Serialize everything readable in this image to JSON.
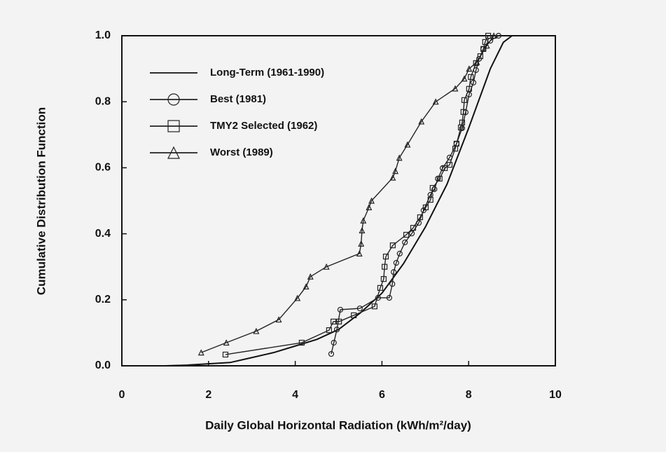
{
  "chart_data": {
    "type": "line",
    "x_label": "Daily Global Horizontal Radiation (kWh/m²/day)",
    "y_label": "Cumulative Distribution Function",
    "xlim": [
      0,
      10
    ],
    "ylim": [
      0,
      1
    ],
    "xticks": [
      0,
      2,
      4,
      6,
      8,
      10
    ],
    "yticks": [
      {
        "value": 0,
        "label": "0.0"
      },
      0.2,
      0.4,
      0.6,
      0.8,
      {
        "value": 1,
        "label": "1.0"
      }
    ],
    "legend": "upper-left",
    "series": [
      {
        "name": "Long-Term (1961-1990)",
        "color": "#111111",
        "marker": "none",
        "x": [
          1.0,
          1.5,
          2.5,
          3.0,
          3.5,
          4.0,
          4.5,
          5.0,
          5.5,
          6.0,
          6.5,
          7.0,
          7.5,
          8.0,
          8.5,
          8.8,
          9.0
        ],
        "values": [
          0,
          0.002,
          0.01,
          0.025,
          0.04,
          0.06,
          0.08,
          0.11,
          0.16,
          0.22,
          0.31,
          0.42,
          0.55,
          0.72,
          0.9,
          0.98,
          1.0
        ]
      },
      {
        "name": "Best (1981)",
        "color": "#222222",
        "marker": "circle",
        "x": [
          4.83,
          4.89,
          4.96,
          5.04,
          5.49,
          5.91,
          6.17,
          6.24,
          6.27,
          6.33,
          6.41,
          6.53,
          6.69,
          6.85,
          6.96,
          7.12,
          7.21,
          7.29,
          7.4,
          7.56,
          7.72,
          7.85,
          7.93,
          8.01,
          8.11,
          8.17,
          8.24,
          8.34,
          8.5,
          8.69
        ],
        "values": [
          0.036,
          0.07,
          0.11,
          0.17,
          0.174,
          0.206,
          0.206,
          0.248,
          0.284,
          0.312,
          0.34,
          0.374,
          0.401,
          0.433,
          0.471,
          0.518,
          0.535,
          0.567,
          0.599,
          0.631,
          0.673,
          0.72,
          0.768,
          0.822,
          0.858,
          0.896,
          0.93,
          0.96,
          0.985,
          1.0
        ]
      },
      {
        "name": "TMY2 Selected (1962)",
        "color": "#222222",
        "marker": "square",
        "x": [
          2.39,
          4.15,
          4.78,
          4.88,
          5.01,
          5.35,
          5.83,
          5.96,
          6.04,
          6.06,
          6.09,
          6.25,
          6.56,
          6.72,
          6.88,
          7.01,
          7.12,
          7.17,
          7.33,
          7.45,
          7.56,
          7.69,
          7.72,
          7.82,
          7.85,
          7.88,
          7.9,
          8.01,
          8.05,
          8.17,
          8.27,
          8.34,
          8.38,
          8.45
        ],
        "values": [
          0.034,
          0.07,
          0.108,
          0.134,
          0.134,
          0.153,
          0.18,
          0.236,
          0.263,
          0.3,
          0.331,
          0.365,
          0.397,
          0.418,
          0.45,
          0.48,
          0.503,
          0.539,
          0.567,
          0.599,
          0.609,
          0.658,
          0.673,
          0.722,
          0.737,
          0.769,
          0.805,
          0.839,
          0.875,
          0.917,
          0.938,
          0.96,
          0.981,
          1.0
        ]
      },
      {
        "name": "Worst (1989)",
        "color": "#222222",
        "marker": "triangle",
        "x": [
          1.83,
          2.41,
          3.1,
          3.62,
          4.05,
          4.25,
          4.35,
          4.72,
          5.48,
          5.52,
          5.54,
          5.57,
          5.7,
          5.76,
          6.25,
          6.31,
          6.4,
          6.59,
          6.91,
          7.24,
          7.69,
          7.9,
          8.01,
          8.19,
          8.42,
          8.58
        ],
        "values": [
          0.04,
          0.07,
          0.105,
          0.14,
          0.205,
          0.24,
          0.27,
          0.3,
          0.34,
          0.37,
          0.41,
          0.44,
          0.48,
          0.5,
          0.57,
          0.59,
          0.63,
          0.67,
          0.74,
          0.8,
          0.84,
          0.87,
          0.9,
          0.92,
          0.97,
          1.0
        ]
      }
    ]
  }
}
